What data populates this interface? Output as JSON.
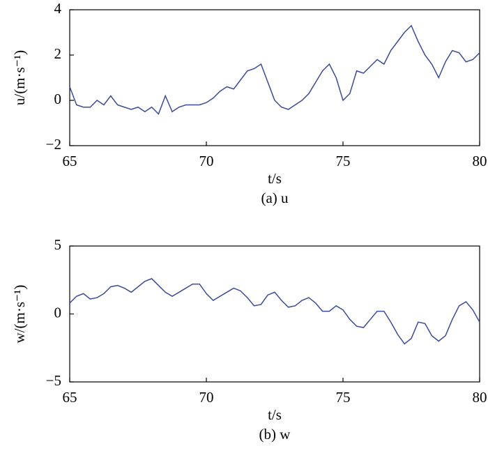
{
  "chart_data": [
    {
      "type": "line",
      "ylabel": "u/(m·s⁻¹)",
      "xlabel": "t/s",
      "caption": "(a) u",
      "color": "#3b4a9a",
      "x": [
        65,
        65.25,
        65.5,
        65.75,
        66,
        66.25,
        66.5,
        66.75,
        67,
        67.25,
        67.5,
        67.75,
        68,
        68.25,
        68.5,
        68.75,
        69,
        69.25,
        69.5,
        69.75,
        70,
        70.25,
        70.5,
        70.75,
        71,
        71.25,
        71.5,
        71.75,
        72,
        72.25,
        72.5,
        72.75,
        73,
        73.25,
        73.5,
        73.75,
        74,
        74.25,
        74.5,
        74.75,
        75,
        75.25,
        75.5,
        75.75,
        76,
        76.25,
        76.5,
        76.75,
        77,
        77.25,
        77.5,
        77.75,
        78,
        78.25,
        78.5,
        78.75,
        79,
        79.25,
        79.5,
        79.75,
        80
      ],
      "values": [
        0.6,
        -0.2,
        -0.3,
        -0.3,
        0.0,
        -0.2,
        0.2,
        -0.2,
        -0.3,
        -0.4,
        -0.3,
        -0.5,
        -0.3,
        -0.6,
        0.2,
        -0.5,
        -0.3,
        -0.2,
        -0.2,
        -0.2,
        -0.1,
        0.1,
        0.4,
        0.6,
        0.5,
        0.9,
        1.3,
        1.4,
        1.6,
        0.8,
        0.0,
        -0.3,
        -0.4,
        -0.2,
        0.0,
        0.3,
        0.8,
        1.3,
        1.6,
        1.0,
        0.0,
        0.3,
        1.3,
        1.2,
        1.5,
        1.8,
        1.6,
        2.2,
        2.6,
        3.0,
        3.3,
        2.6,
        2.0,
        1.6,
        1.0,
        1.7,
        2.2,
        2.1,
        1.7,
        1.8,
        2.1
      ],
      "xlim": [
        65,
        80
      ],
      "xticks": [
        65,
        70,
        75,
        80
      ],
      "ylim": [
        -2,
        4
      ],
      "yticks": [
        {
          "value": -2,
          "label": "−2"
        },
        0,
        2,
        4
      ]
    },
    {
      "type": "line",
      "ylabel": "w/(m·s⁻¹)",
      "xlabel": "t/s",
      "caption": "(b) w",
      "color": "#3b4a9a",
      "x": [
        65,
        65.25,
        65.5,
        65.75,
        66,
        66.25,
        66.5,
        66.75,
        67,
        67.25,
        67.5,
        67.75,
        68,
        68.25,
        68.5,
        68.75,
        69,
        69.25,
        69.5,
        69.75,
        70,
        70.25,
        70.5,
        70.75,
        71,
        71.25,
        71.5,
        71.75,
        72,
        72.25,
        72.5,
        72.75,
        73,
        73.25,
        73.5,
        73.75,
        74,
        74.25,
        74.5,
        74.75,
        75,
        75.25,
        75.5,
        75.75,
        76,
        76.25,
        76.5,
        76.75,
        77,
        77.25,
        77.5,
        77.75,
        78,
        78.25,
        78.5,
        78.75,
        79,
        79.25,
        79.5,
        79.75,
        80
      ],
      "values": [
        0.8,
        1.3,
        1.5,
        1.1,
        1.2,
        1.5,
        2.0,
        2.1,
        1.9,
        1.6,
        2.0,
        2.4,
        2.6,
        2.1,
        1.6,
        1.3,
        1.6,
        1.9,
        2.2,
        2.2,
        1.5,
        1.0,
        1.3,
        1.6,
        1.9,
        1.7,
        1.2,
        0.6,
        0.7,
        1.4,
        1.6,
        1.0,
        0.5,
        0.6,
        1.0,
        1.2,
        0.8,
        0.2,
        0.2,
        0.6,
        0.3,
        -0.4,
        -0.9,
        -1.0,
        -0.4,
        0.2,
        0.2,
        -0.6,
        -1.5,
        -2.2,
        -1.8,
        -0.6,
        -0.7,
        -1.6,
        -2.0,
        -1.6,
        -0.4,
        0.6,
        0.9,
        0.3,
        -0.6
      ],
      "xlim": [
        65,
        80
      ],
      "xticks": [
        65,
        70,
        75,
        80
      ],
      "ylim": [
        -5,
        5
      ],
      "yticks": [
        {
          "value": -5,
          "label": "−5"
        },
        0,
        5
      ]
    }
  ]
}
